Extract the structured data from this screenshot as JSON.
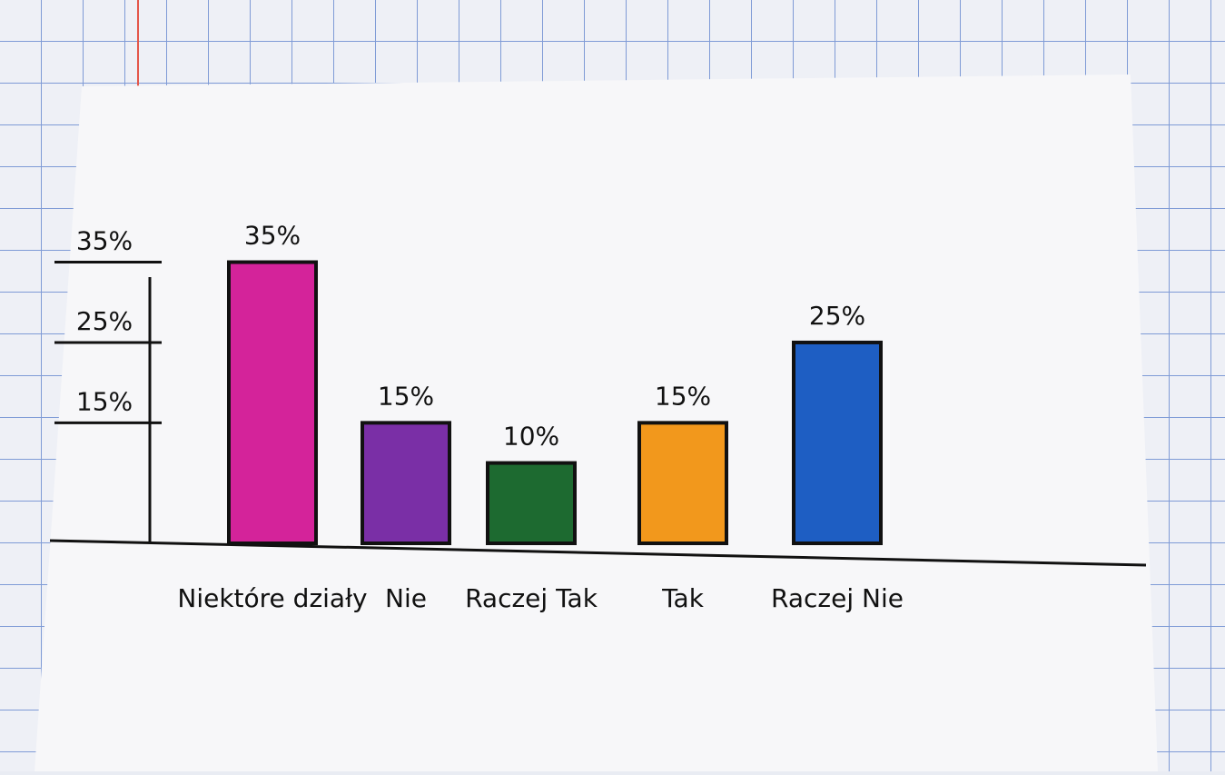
{
  "chart_data": {
    "type": "bar",
    "categories": [
      "Niektóre działy",
      "Nie",
      "Raczej Tak",
      "Tak",
      "Raczej Nie"
    ],
    "values": [
      35,
      15,
      10,
      15,
      25
    ],
    "value_labels": [
      "35%",
      "15%",
      "10%",
      "15%",
      "25%"
    ],
    "colors": [
      "#d4239a",
      "#7a2fa6",
      "#1d6a30",
      "#f2981c",
      "#1e5ec3"
    ],
    "ylim": [
      0,
      38
    ],
    "yticks": [
      {
        "value": 15,
        "label": "15%"
      },
      {
        "value": 25,
        "label": "25%"
      },
      {
        "value": 35,
        "label": "35%"
      }
    ],
    "grid": false
  }
}
